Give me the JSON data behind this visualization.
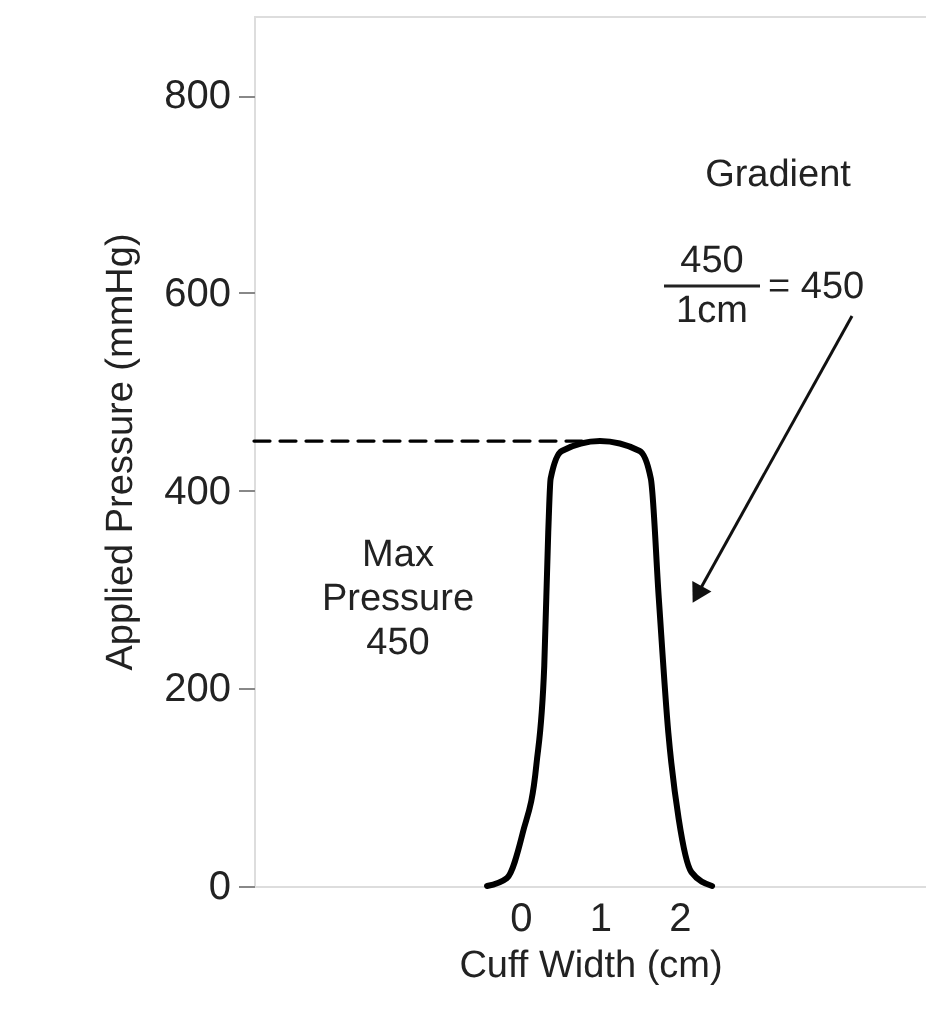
{
  "chart_data": {
    "type": "line",
    "xlabel": "Cuff Width (cm)",
    "ylabel": "Applied Pressure (mmHg)",
    "xlim": [
      -3.35,
      5.1
    ],
    "xticks": [
      0,
      1,
      2
    ],
    "ylim": [
      0,
      880
    ],
    "yticks": [
      0,
      200,
      400,
      600,
      800
    ],
    "grid": false,
    "marker": "none",
    "series": [
      {
        "color": "#000000",
        "line_style": "solid",
        "x": [
          -0.42,
          -0.17,
          0.03,
          0.2,
          0.3,
          0.35,
          0.38,
          0.52,
          1.0,
          1.5,
          1.64,
          1.74,
          1.86,
          1.99,
          2.15,
          2.41
        ],
        "values": [
          0,
          8,
          54,
          122,
          223,
          358,
          412,
          440,
          450,
          440,
          412,
          291,
          155,
          68,
          14,
          0
        ]
      },
      {
        "color": "#000000",
        "line_style": "dashed",
        "x": [
          -3.35,
          1.0
        ],
        "values": [
          450,
          450
        ]
      }
    ],
    "annotations": [
      "Max Pressure 450",
      "Gradient",
      "450",
      "1cm",
      "= 450"
    ]
  }
}
